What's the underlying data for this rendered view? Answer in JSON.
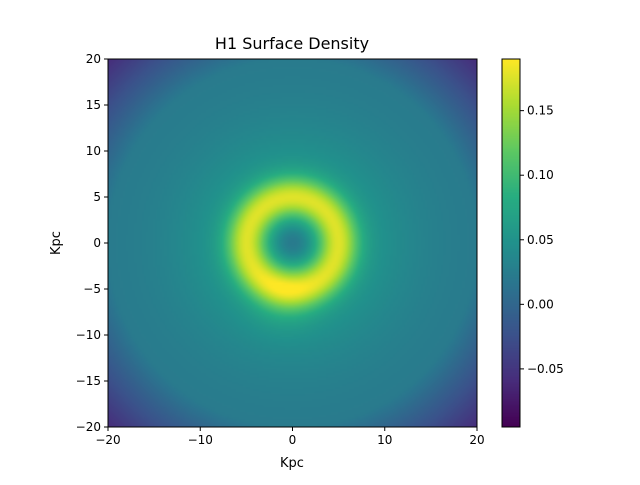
{
  "chart_data": {
    "type": "heatmap",
    "title": "H1 Surface Density",
    "xlabel": "Kpc",
    "ylabel": "Kpc",
    "xlim": [
      -20,
      20
    ],
    "ylim": [
      -20,
      20
    ],
    "x_ticks": [
      -20,
      -10,
      0,
      10,
      20
    ],
    "x_tick_labels": [
      "−20",
      "−10",
      "0",
      "10",
      "20"
    ],
    "y_ticks": [
      -20,
      -15,
      -10,
      -5,
      0,
      5,
      10,
      15,
      20
    ],
    "y_tick_labels": [
      "−20",
      "−15",
      "−10",
      "−5",
      "0",
      "5",
      "10",
      "15",
      "20"
    ],
    "grid": false,
    "colormap": "viridis",
    "colorbar": {
      "range": [
        -0.095,
        0.19
      ],
      "ticks": [
        -0.05,
        0.0,
        0.05,
        0.1,
        0.15
      ],
      "tick_labels": [
        "−0.05",
        "0.00",
        "0.05",
        "0.10",
        "0.15"
      ]
    },
    "field": {
      "description_of_structure": "ring of high density near radius 5 Kpc with a depression at center",
      "center_value": 0.02,
      "ring_radius": 5,
      "ring_peak_value": 0.19,
      "peak_location": [
        -1,
        -6
      ],
      "corner_value": -0.09,
      "outer_edge_value": 0.02
    }
  }
}
